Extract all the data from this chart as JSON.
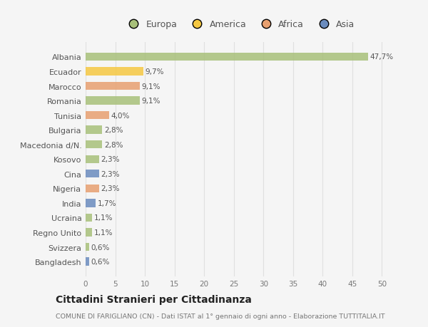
{
  "countries": [
    "Bangladesh",
    "Svizzera",
    "Regno Unito",
    "Ucraina",
    "India",
    "Nigeria",
    "Cina",
    "Kosovo",
    "Macedonia d/N.",
    "Bulgaria",
    "Tunisia",
    "Romania",
    "Marocco",
    "Ecuador",
    "Albania"
  ],
  "values": [
    0.6,
    0.6,
    1.1,
    1.1,
    1.7,
    2.3,
    2.3,
    2.3,
    2.8,
    2.8,
    4.0,
    9.1,
    9.1,
    9.7,
    47.7
  ],
  "labels": [
    "0,6%",
    "0,6%",
    "1,1%",
    "1,1%",
    "1,7%",
    "2,3%",
    "2,3%",
    "2,3%",
    "2,8%",
    "2,8%",
    "4,0%",
    "9,1%",
    "9,1%",
    "9,7%",
    "47,7%"
  ],
  "colors": [
    "#6b8cbe",
    "#a8c07a",
    "#a8c07a",
    "#a8c07a",
    "#6b8cbe",
    "#e8a070",
    "#6b8cbe",
    "#a8c07a",
    "#a8c07a",
    "#a8c07a",
    "#e8a070",
    "#a8c07a",
    "#e8a070",
    "#f5c842",
    "#a8c07a"
  ],
  "legend_labels": [
    "Europa",
    "America",
    "Africa",
    "Asia"
  ],
  "legend_colors": [
    "#a8c07a",
    "#f5c842",
    "#e8a070",
    "#6b8cbe"
  ],
  "title": "Cittadini Stranieri per Cittadinanza",
  "subtitle": "COMUNE DI FARIGLIANO (CN) - Dati ISTAT al 1° gennaio di ogni anno - Elaborazione TUTTITALIA.IT",
  "xlim": [
    0,
    52
  ],
  "xticks": [
    0,
    5,
    10,
    15,
    20,
    25,
    30,
    35,
    40,
    45,
    50
  ],
  "bg_color": "#f5f5f5",
  "grid_color": "#e0e0e0"
}
